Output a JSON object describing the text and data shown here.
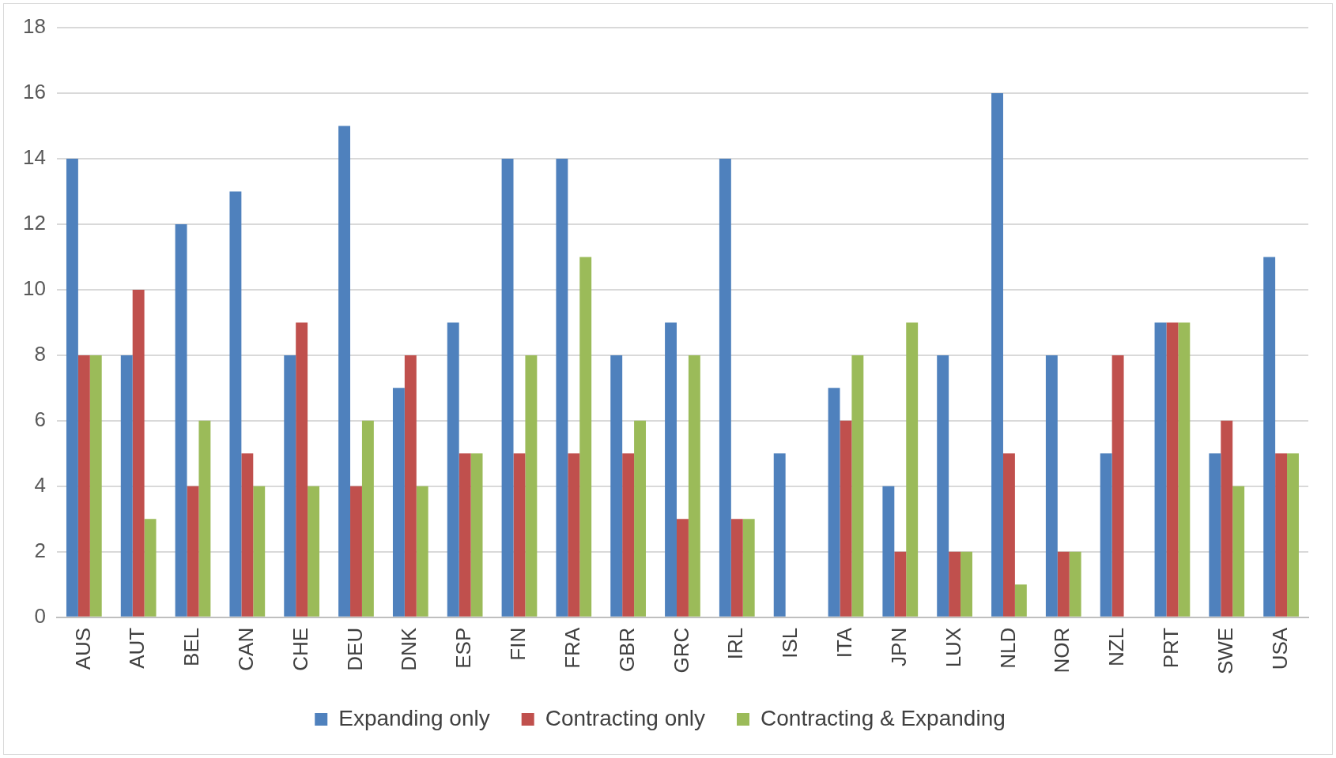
{
  "chart_data": {
    "type": "bar",
    "categories": [
      "AUS",
      "AUT",
      "BEL",
      "CAN",
      "CHE",
      "DEU",
      "DNK",
      "ESP",
      "FIN",
      "FRA",
      "GBR",
      "GRC",
      "IRL",
      "ISL",
      "ITA",
      "JPN",
      "LUX",
      "NLD",
      "NOR",
      "NZL",
      "PRT",
      "SWE",
      "USA"
    ],
    "series": [
      {
        "name": "Expanding only",
        "color": "#4f81bd",
        "values": [
          14,
          8,
          12,
          13,
          8,
          15,
          7,
          9,
          14,
          14,
          8,
          9,
          14,
          5,
          7,
          4,
          8,
          16,
          8,
          5,
          9,
          5,
          11
        ]
      },
      {
        "name": "Contracting only",
        "color": "#c0504d",
        "values": [
          8,
          10,
          4,
          5,
          9,
          4,
          8,
          5,
          5,
          5,
          5,
          3,
          3,
          0,
          6,
          2,
          2,
          5,
          2,
          8,
          9,
          6,
          5
        ]
      },
      {
        "name": "Contracting & Expanding",
        "color": "#9bbb59",
        "values": [
          8,
          3,
          6,
          4,
          4,
          6,
          4,
          5,
          8,
          11,
          6,
          8,
          3,
          0,
          8,
          9,
          2,
          1,
          2,
          0,
          9,
          4,
          5
        ]
      }
    ],
    "ylim": [
      0,
      18
    ],
    "yticks": [
      0,
      2,
      4,
      6,
      8,
      10,
      12,
      14,
      16,
      18
    ],
    "grid": "y",
    "legend": "bottom"
  }
}
